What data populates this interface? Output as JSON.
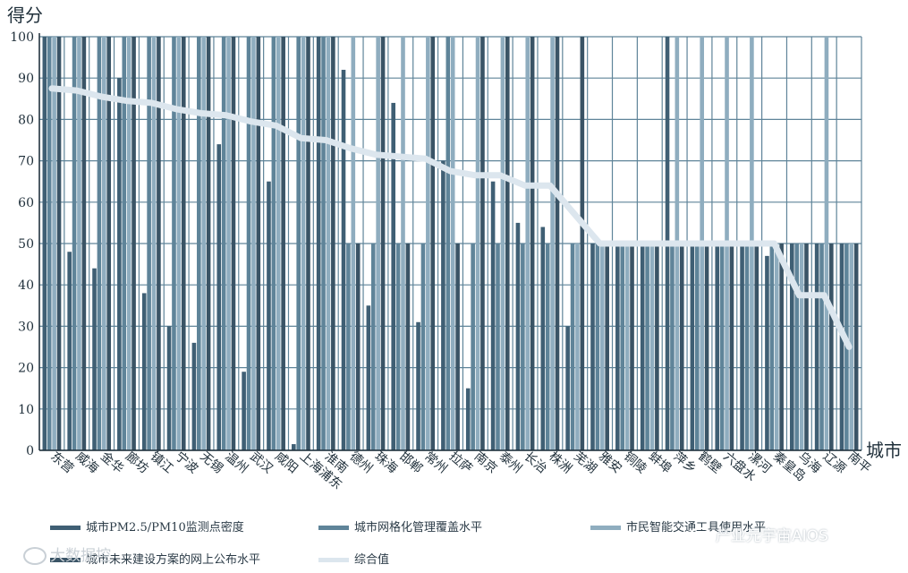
{
  "chart_data": {
    "type": "bar",
    "ylabel": "得分",
    "xlabel": "城市",
    "ylim": [
      0,
      100
    ],
    "yticks": [
      0,
      10,
      20,
      30,
      40,
      50,
      60,
      70,
      80,
      90,
      100
    ],
    "grid": true,
    "legend_position": "bottom",
    "categories": [
      "东营",
      "威海",
      "金华",
      "廊坊",
      "镇江",
      "宁波",
      "无锡",
      "温州",
      "武汉",
      "咸阳",
      "上海浦东",
      "淮南",
      "德州",
      "珠海",
      "邯郸",
      "常州",
      "拉萨",
      "南京",
      "泰州",
      "长治",
      "株洲",
      "芜湖",
      "雅安",
      "铜陵",
      "蚌埠",
      "萍乡",
      "鹤壁",
      "六盘水",
      "漯河",
      "秦皇岛",
      "乌海",
      "辽源",
      "南平"
    ],
    "series": [
      {
        "name": "城市PM2.5/PM10监测点密度",
        "type": "bar",
        "color": "#3f5f74",
        "values": [
          100,
          48,
          44,
          90,
          38,
          30,
          26,
          74,
          19,
          65,
          1.5,
          100,
          92,
          35,
          84,
          31,
          70,
          15,
          65,
          55,
          54,
          30,
          50,
          50,
          50,
          100,
          50,
          50,
          50,
          47,
          50,
          50,
          50
        ]
      },
      {
        "name": "城市网格化管理覆盖水平",
        "type": "bar",
        "color": "#5f8499",
        "values": [
          100,
          100,
          100,
          100,
          100,
          100,
          100,
          100,
          100,
          100,
          100,
          100,
          50,
          50,
          50,
          50,
          100,
          50,
          50,
          50,
          50,
          50,
          50,
          50,
          50,
          50,
          50,
          50,
          50,
          50,
          50,
          50,
          50
        ]
      },
      {
        "name": "市民智能交通工具使用水平",
        "type": "bar",
        "color": "#8fadbf",
        "values": [
          100,
          100,
          100,
          100,
          100,
          100,
          100,
          100,
          100,
          100,
          100,
          100,
          100,
          100,
          100,
          100,
          100,
          100,
          100,
          100,
          100,
          50,
          50,
          50,
          50,
          100,
          100,
          100,
          100,
          50,
          50,
          100,
          50
        ]
      },
      {
        "name": "城市未来建设方案的网上公布水平",
        "type": "bar",
        "color": "#3a5466",
        "values": [
          100,
          100,
          100,
          100,
          100,
          100,
          100,
          100,
          100,
          100,
          100,
          100,
          50,
          100,
          50,
          100,
          50,
          100,
          100,
          100,
          100,
          100,
          50,
          50,
          50,
          50,
          50,
          50,
          50,
          50,
          50,
          50,
          50
        ]
      },
      {
        "name": "综合值",
        "type": "line",
        "color": "#dce6ee",
        "values": [
          87.5,
          87,
          85.5,
          84.5,
          84,
          82.5,
          81.5,
          81,
          79.5,
          78.5,
          75.5,
          75,
          73,
          71.5,
          71,
          70.5,
          67.5,
          66.5,
          66.5,
          64,
          64,
          57,
          50,
          50,
          50,
          50,
          50,
          50,
          50,
          50,
          37.5,
          37.5,
          25
        ]
      }
    ]
  },
  "watermarks": {
    "left": "大数据控",
    "right": "产业元宇宙AIOS"
  }
}
